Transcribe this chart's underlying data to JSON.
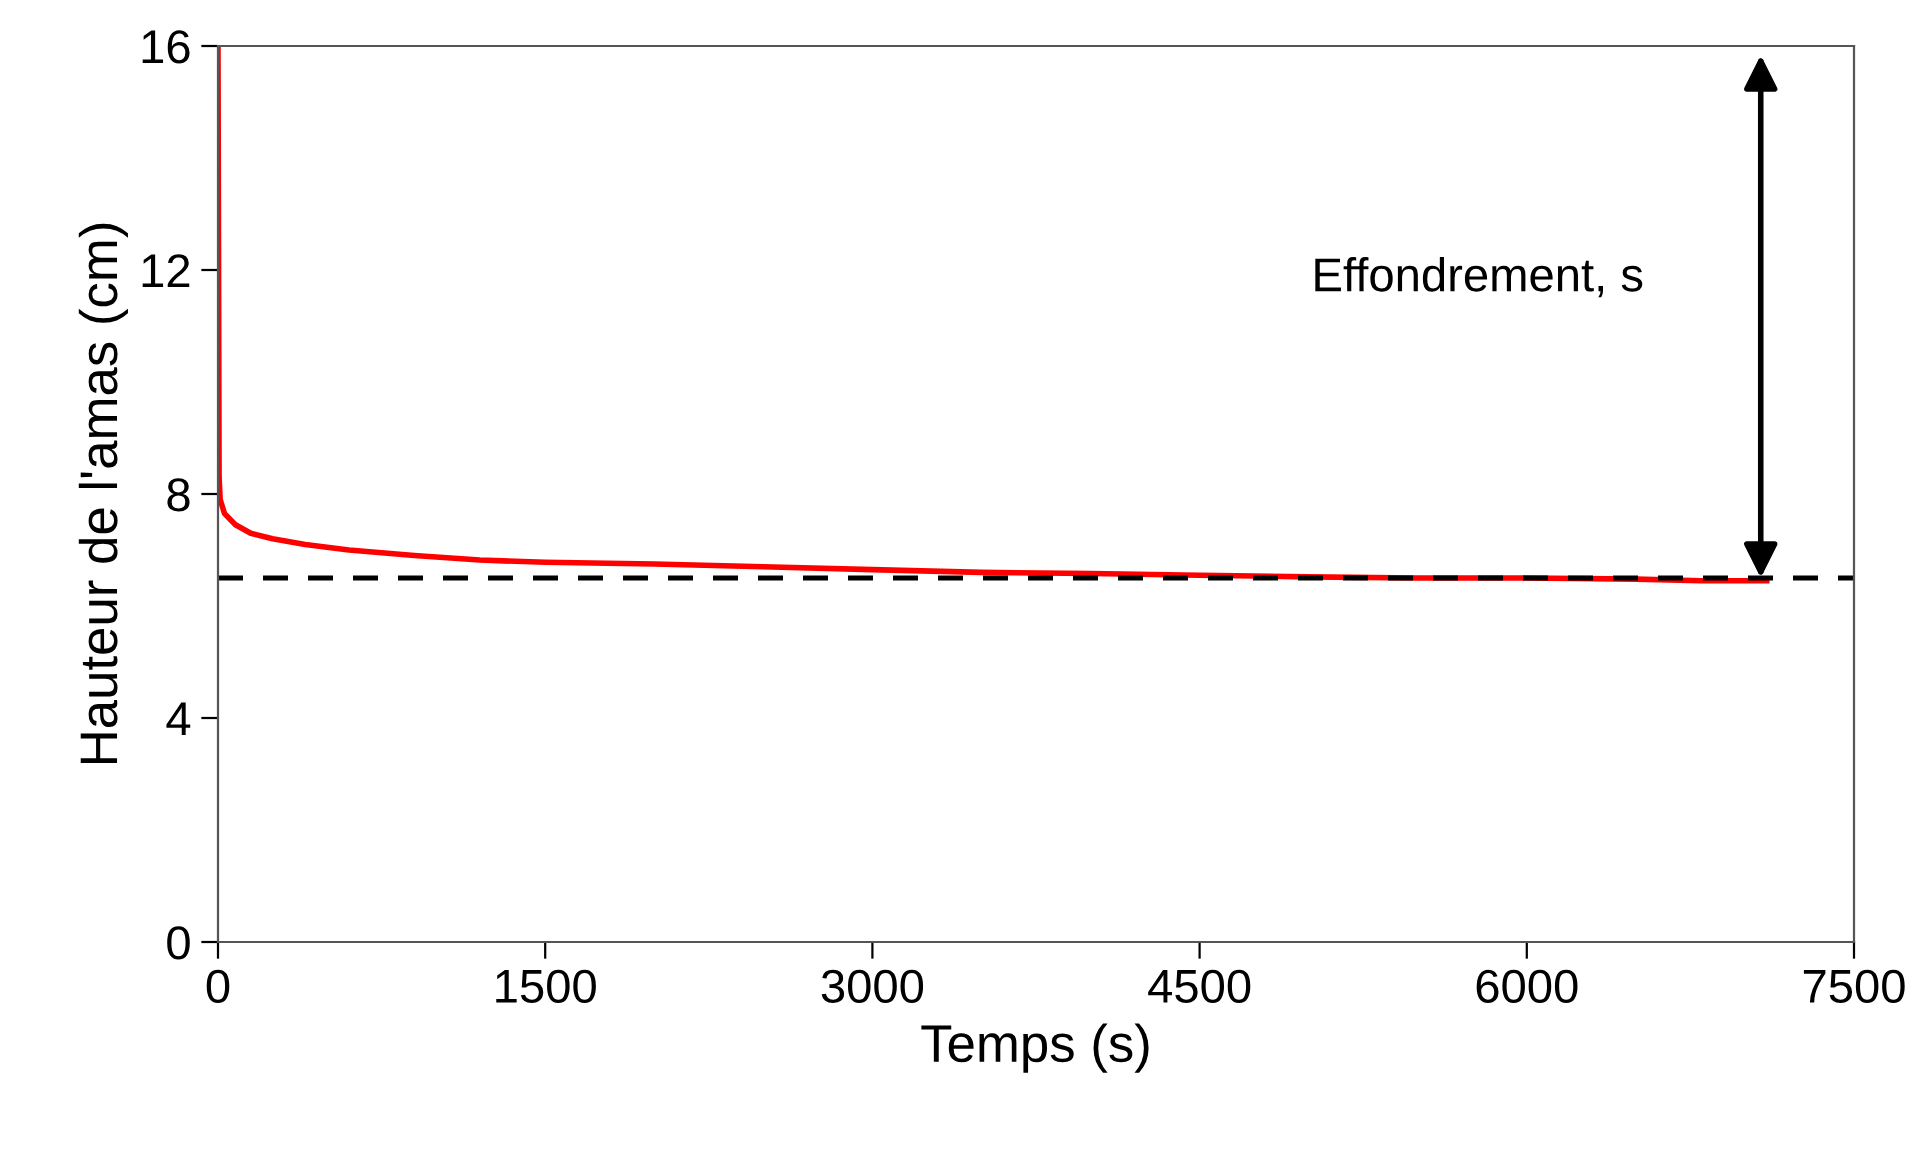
{
  "chart_data": {
    "type": "line",
    "xlabel": "Temps (s)",
    "ylabel": "Hauteur de l'amas (cm)",
    "x": [
      0,
      5,
      10,
      30,
      80,
      150,
      250,
      400,
      600,
      900,
      1200,
      1500,
      2000,
      2500,
      3000,
      3500,
      4000,
      4500,
      5000,
      5500,
      6000,
      6500,
      6800,
      7100
    ],
    "series": [
      {
        "color": "#ff0000",
        "values": [
          16,
          8.3,
          7.9,
          7.65,
          7.45,
          7.3,
          7.2,
          7.1,
          7.0,
          6.9,
          6.82,
          6.78,
          6.75,
          6.7,
          6.65,
          6.6,
          6.58,
          6.55,
          6.52,
          6.5,
          6.5,
          6.48,
          6.45,
          6.45
        ]
      }
    ],
    "xlim": [
      0,
      7500
    ],
    "xticks": [
      0,
      1500,
      3000,
      4500,
      6000,
      7500
    ],
    "ylim": [
      0,
      16
    ],
    "yticks": [
      0,
      4,
      8,
      12,
      16
    ],
    "ref_lines": [
      {
        "axis": "y",
        "value": 6.5,
        "color": "#000000",
        "line_style": "dashed"
      }
    ],
    "annotations": [
      "Effondrement, s"
    ],
    "grid": false,
    "marker": "none",
    "line_style": "solid"
  }
}
